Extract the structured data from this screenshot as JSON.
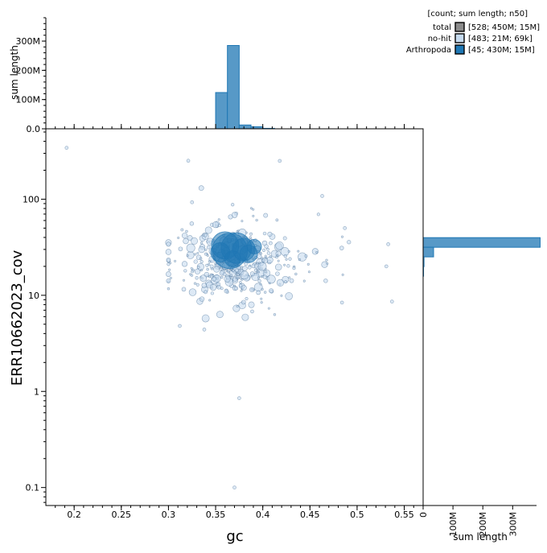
{
  "chart_data": {
    "type": "scatter",
    "x_axis": {
      "label": "gc",
      "range": [
        0.17,
        0.57
      ],
      "ticks": [
        {
          "v": 0.2,
          "t": "0.2"
        },
        {
          "v": 0.25,
          "t": "0.25"
        },
        {
          "v": 0.3,
          "t": "0.3"
        },
        {
          "v": 0.35,
          "t": "0.35"
        },
        {
          "v": 0.4,
          "t": "0.4"
        },
        {
          "v": 0.45,
          "t": "0.45"
        },
        {
          "v": 0.5,
          "t": "0.5"
        },
        {
          "v": 0.55,
          "t": "0.55"
        }
      ]
    },
    "y_axis": {
      "label": "ERR10662023_cov",
      "scale": "log",
      "range": [
        0.065,
        540
      ],
      "ticks": [
        {
          "v": 0.1,
          "t": "0.1"
        },
        {
          "v": 1,
          "t": "1"
        },
        {
          "v": 10,
          "t": "10"
        },
        {
          "v": 100,
          "t": "100"
        }
      ]
    },
    "top_histogram": {
      "ylabel": "sum length",
      "range": [
        0,
        380000000
      ],
      "ticks": [
        {
          "v": 0,
          "t": "0.0"
        },
        {
          "v": 100000000,
          "t": "100M"
        },
        {
          "v": 200000000,
          "t": "200M"
        },
        {
          "v": 300000000,
          "t": "300M"
        }
      ],
      "bins": [
        {
          "x0": 0.35,
          "x1": 0.3625,
          "v": 124000000
        },
        {
          "x0": 0.3625,
          "x1": 0.375,
          "v": 285000000
        },
        {
          "x0": 0.375,
          "x1": 0.3875,
          "v": 13000000
        },
        {
          "x0": 0.3875,
          "x1": 0.4,
          "v": 7000000
        },
        {
          "x0": 0.4,
          "x1": 0.4125,
          "v": 1500000
        }
      ]
    },
    "right_histogram": {
      "xlabel": "sum length",
      "range": [
        0,
        380000000
      ],
      "ticks": [
        {
          "v": 0,
          "t": "0"
        },
        {
          "v": 100000000,
          "t": "100M"
        },
        {
          "v": 200000000,
          "t": "200M"
        },
        {
          "v": 300000000,
          "t": "300M"
        }
      ],
      "bins": [
        {
          "y0": 31.6,
          "y1": 39.8,
          "v": 392000000
        },
        {
          "y0": 25.1,
          "y1": 31.6,
          "v": 35000000
        },
        {
          "y0": 19.9,
          "y1": 25.1,
          "v": 3000000
        },
        {
          "y0": 15.8,
          "y1": 19.9,
          "v": 1500000
        }
      ]
    },
    "legend": {
      "header": "[count; sum length; n50]",
      "entries": [
        {
          "name": "total",
          "stats": "[528; 450M; 15M]",
          "color": "#8c8c8c"
        },
        {
          "name": "no-hit",
          "stats": "[483; 21M; 69k]",
          "color": "#c6dbef"
        },
        {
          "name": "Arthropoda",
          "stats": "[45; 430M; 15M]",
          "color": "#1f77b4"
        }
      ]
    },
    "big_points": [
      {
        "x": 0.365,
        "y": 29,
        "r": 22
      },
      {
        "x": 0.372,
        "y": 31,
        "r": 19
      },
      {
        "x": 0.36,
        "y": 33,
        "r": 17
      },
      {
        "x": 0.38,
        "y": 30,
        "r": 14
      },
      {
        "x": 0.385,
        "y": 27,
        "r": 11
      },
      {
        "x": 0.355,
        "y": 28,
        "r": 12
      },
      {
        "x": 0.368,
        "y": 24,
        "r": 10
      },
      {
        "x": 0.391,
        "y": 32,
        "r": 9
      }
    ],
    "outlier_points": [
      {
        "x": 0.192,
        "y": 342
      },
      {
        "x": 0.37,
        "y": 0.1
      },
      {
        "x": 0.375,
        "y": 0.85
      },
      {
        "x": 0.312,
        "y": 4.8
      },
      {
        "x": 0.338,
        "y": 4.4
      },
      {
        "x": 0.484,
        "y": 8.4
      },
      {
        "x": 0.537,
        "y": 8.6
      },
      {
        "x": 0.533,
        "y": 34
      },
      {
        "x": 0.531,
        "y": 20
      },
      {
        "x": 0.418,
        "y": 250
      },
      {
        "x": 0.463,
        "y": 108
      },
      {
        "x": 0.487,
        "y": 50
      },
      {
        "x": 0.321,
        "y": 251
      },
      {
        "x": 0.325,
        "y": 93
      }
    ],
    "noise_seed": 7,
    "noise_count": 440
  }
}
